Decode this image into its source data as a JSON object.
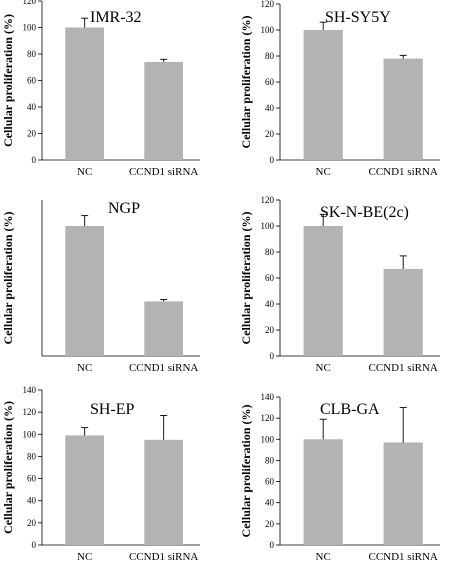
{
  "chart_data": [
    {
      "type": "bar",
      "title": "IMR-32",
      "ylabel": "Cellular proliferation (%)",
      "categories": [
        "NC",
        "CCND1 siRNA"
      ],
      "values": [
        100,
        74
      ],
      "errors": [
        7,
        2
      ],
      "ylim": [
        0,
        120
      ],
      "yticks": [
        0,
        20,
        40,
        60,
        80,
        100,
        120
      ],
      "bar_color": "#b3b3b3"
    },
    {
      "type": "bar",
      "title": "SH-SY5Y",
      "ylabel": "Cellular proliferation (%)",
      "categories": [
        "NC",
        "CCND1 siRNA"
      ],
      "values": [
        100,
        78
      ],
      "errors": [
        6,
        2.5
      ],
      "ylim": [
        0,
        120
      ],
      "yticks": [
        0,
        20,
        40,
        60,
        80,
        100,
        120
      ],
      "bar_color": "#b3b3b3"
    },
    {
      "type": "bar",
      "title": "NGP",
      "ylabel": "Cellular proliferation (%)",
      "categories": [
        "NC",
        "CCND1 siRNA"
      ],
      "values": [
        100,
        42
      ],
      "errors": [
        8,
        1.5
      ],
      "ylim": [
        0,
        120
      ],
      "yticks": [],
      "bar_color": "#b3b3b3"
    },
    {
      "type": "bar",
      "title": "SK-N-BE(2c)",
      "ylabel": "Cellular proliferation (%)",
      "categories": [
        "NC",
        "CCND1 siRNA"
      ],
      "values": [
        100,
        67
      ],
      "errors": [
        9,
        10
      ],
      "ylim": [
        0,
        120
      ],
      "yticks": [
        0,
        20,
        40,
        60,
        80,
        100,
        120
      ],
      "bar_color": "#b3b3b3"
    },
    {
      "type": "bar",
      "title": "SH-EP",
      "ylabel": "Cellular proliferation (%)",
      "categories": [
        "NC",
        "CCND1 siRNA"
      ],
      "values": [
        99,
        95
      ],
      "errors": [
        7,
        22
      ],
      "ylim": [
        0,
        140
      ],
      "yticks": [
        0,
        20,
        40,
        60,
        80,
        100,
        120,
        140
      ],
      "bar_color": "#b3b3b3"
    },
    {
      "type": "bar",
      "title": "CLB-GA",
      "ylabel": "Cellular proliferation (%)",
      "categories": [
        "NC",
        "CCND1 siRNA"
      ],
      "values": [
        100,
        97
      ],
      "errors": [
        19,
        33
      ],
      "ylim": [
        0,
        140
      ],
      "yticks": [
        0,
        20,
        40,
        60,
        80,
        100,
        120,
        140
      ],
      "bar_color": "#b3b3b3"
    }
  ]
}
